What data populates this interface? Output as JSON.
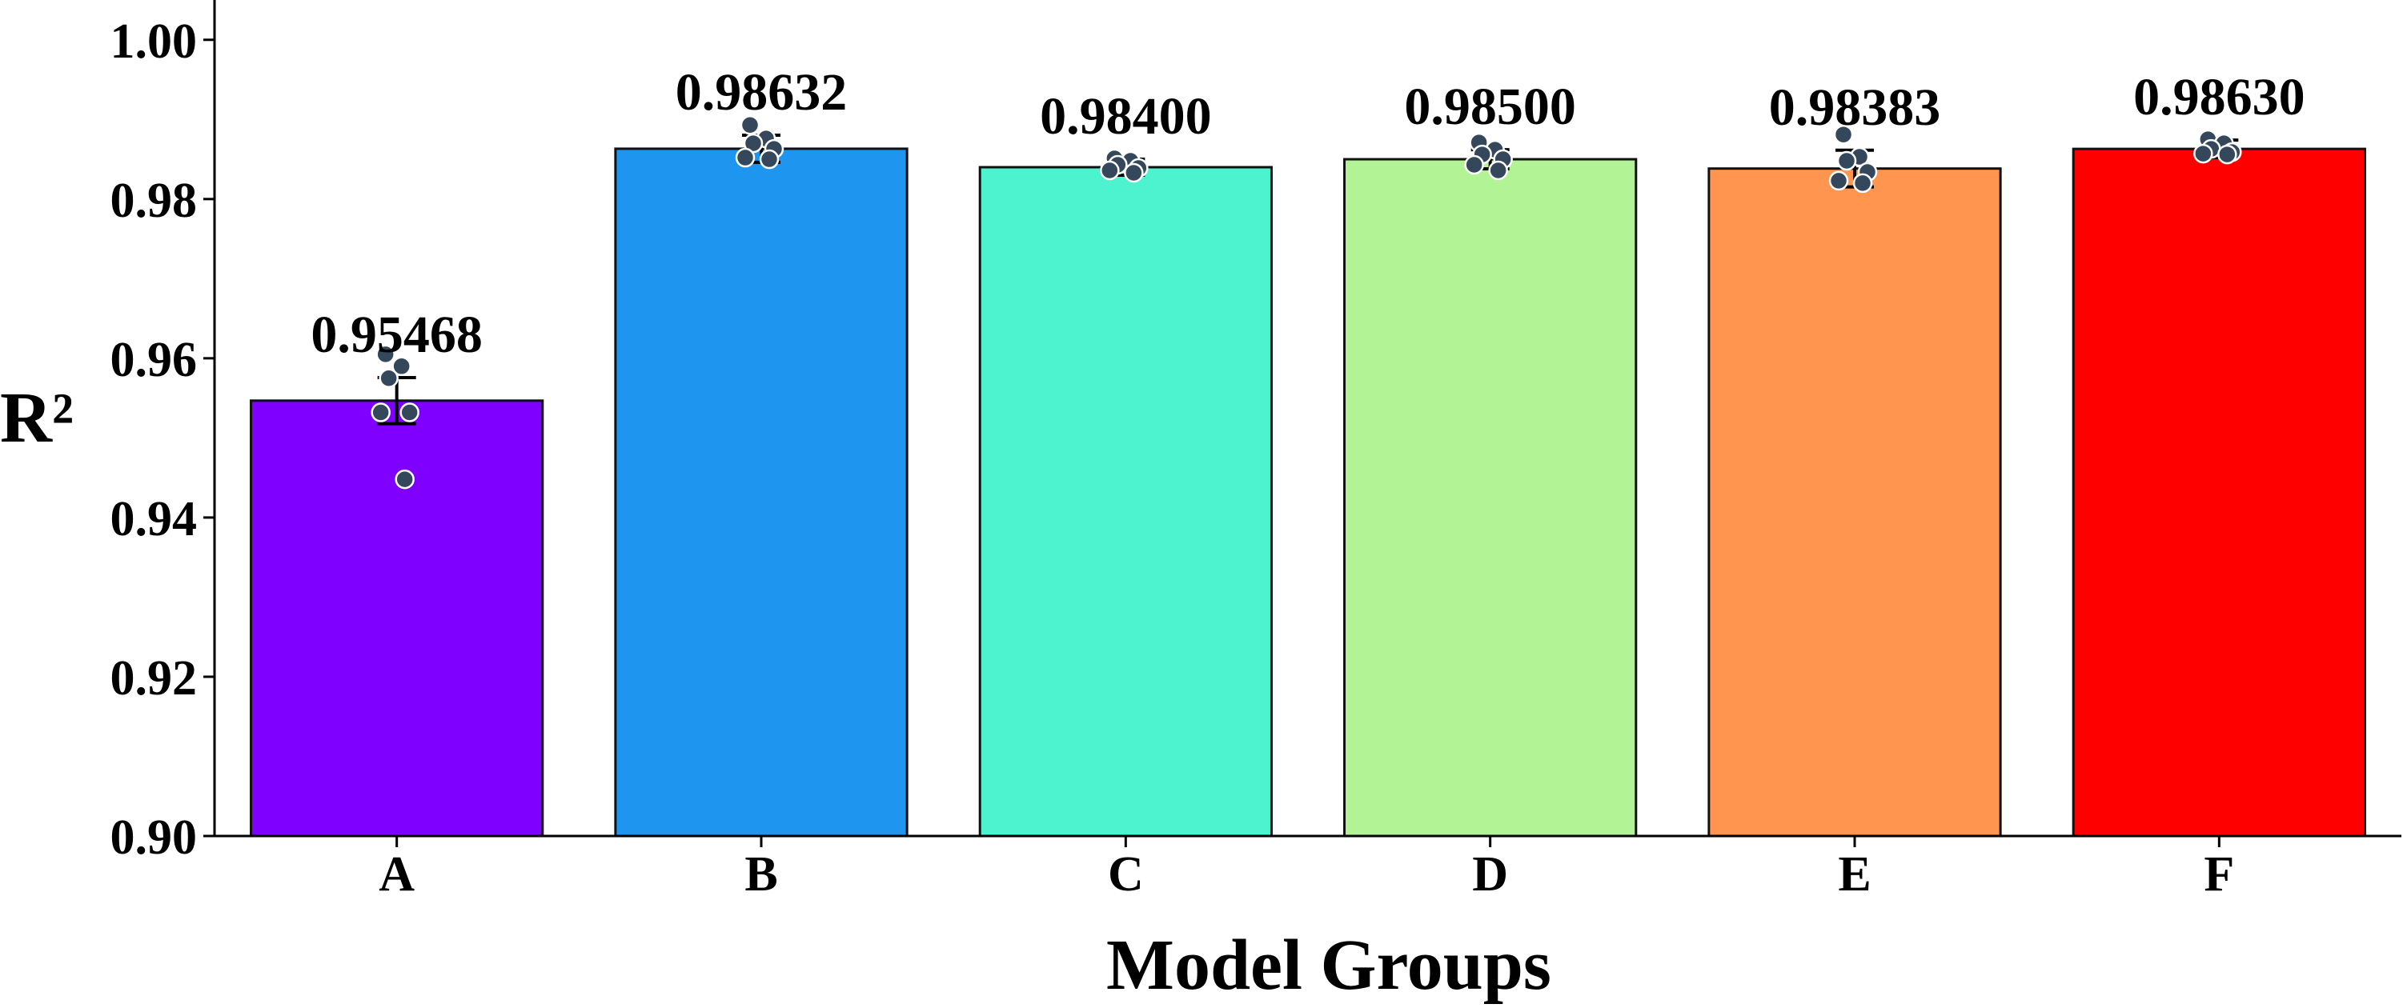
{
  "chart_data": {
    "type": "bar",
    "title": "",
    "xlabel": "Model Groups",
    "ylabel": "R²",
    "ylim": [
      0.9,
      1.005
    ],
    "yticks": [
      "0.90",
      "0.92",
      "0.94",
      "0.96",
      "0.98",
      "1.00"
    ],
    "categories": [
      "A",
      "B",
      "C",
      "D",
      "E",
      "F"
    ],
    "values": [
      0.95468,
      0.98632,
      0.984,
      0.985,
      0.98383,
      0.9863
    ],
    "value_labels": [
      "0.95468",
      "0.98632",
      "0.98400",
      "0.98500",
      "0.98383",
      "0.98630"
    ],
    "error": [
      0.0029,
      0.0017,
      0.001,
      0.0012,
      0.0023,
      0.0011
    ],
    "colors": [
      "#7f00ff",
      "#1e96f0",
      "#4df3ce",
      "#b2f396",
      "#ff954e",
      "#ff0000"
    ],
    "points": [
      [
        0.9605,
        0.959,
        0.9575,
        0.9532,
        0.9532,
        0.9448
      ],
      [
        0.9893,
        0.9876,
        0.987,
        0.9863,
        0.9852,
        0.985
      ],
      [
        0.9851,
        0.9848,
        0.9843,
        0.9839,
        0.9836,
        0.9833
      ],
      [
        0.9871,
        0.9862,
        0.9856,
        0.985,
        0.9843,
        0.9836
      ],
      [
        0.9881,
        0.9853,
        0.9848,
        0.9834,
        0.9823,
        0.982
      ],
      [
        0.9875,
        0.987,
        0.9863,
        0.9859,
        0.9857,
        0.9856
      ]
    ],
    "point_color": "#34475b",
    "grid": false,
    "legend": "none"
  }
}
